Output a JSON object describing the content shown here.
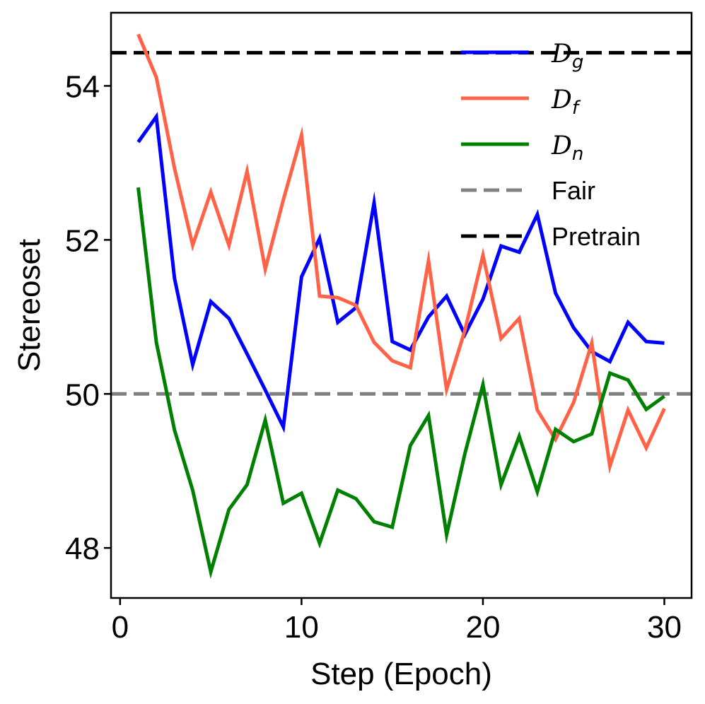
{
  "chart_data": {
    "type": "line",
    "title": "",
    "xlabel": "Step (Epoch)",
    "ylabel": "Stereoset",
    "xlim": [
      -0.5,
      31.5
    ],
    "ylim": [
      47.35,
      54.95
    ],
    "xticks": [
      0,
      10,
      20,
      30
    ],
    "yticks": [
      48,
      50,
      52,
      54
    ],
    "xtick_labels": [
      "0",
      "10",
      "20",
      "30"
    ],
    "ytick_labels": [
      "48",
      "50",
      "52",
      "54"
    ],
    "grid": false,
    "legend_position": "top-right",
    "x": [
      1,
      2,
      3,
      4,
      5,
      6,
      7,
      8,
      9,
      10,
      11,
      12,
      13,
      14,
      15,
      16,
      17,
      18,
      19,
      20,
      21,
      22,
      23,
      24,
      25,
      26,
      27,
      28,
      29,
      30
    ],
    "series": [
      {
        "name": "D_g",
        "symbol": "D",
        "subscript": "g",
        "color": "#0000ff",
        "style": "solid",
        "values": [
          53.27,
          53.6,
          51.5,
          50.38,
          51.2,
          50.98,
          50.52,
          50.05,
          49.57,
          51.52,
          52.02,
          50.93,
          51.12,
          52.48,
          50.68,
          50.57,
          51.0,
          51.27,
          50.77,
          51.23,
          51.92,
          51.84,
          52.33,
          51.31,
          50.86,
          50.55,
          50.42,
          50.93,
          50.68,
          50.66
        ]
      },
      {
        "name": "D_f",
        "symbol": "D",
        "subscript": "f",
        "color": "#ff6347",
        "style": "solid",
        "values": [
          54.67,
          54.11,
          52.93,
          51.93,
          52.62,
          51.93,
          52.89,
          51.62,
          52.52,
          53.36,
          51.27,
          51.25,
          51.15,
          50.67,
          50.43,
          50.34,
          51.73,
          50.06,
          50.82,
          51.8,
          50.72,
          50.98,
          49.79,
          49.41,
          49.89,
          50.66,
          49.06,
          49.79,
          49.3,
          49.81
        ]
      },
      {
        "name": "D_n",
        "symbol": "D",
        "subscript": "n",
        "color": "#008000",
        "style": "solid",
        "values": [
          52.68,
          50.67,
          49.53,
          48.75,
          47.69,
          48.5,
          48.82,
          49.66,
          48.58,
          48.71,
          48.06,
          48.75,
          48.64,
          48.34,
          48.27,
          49.33,
          49.72,
          48.17,
          49.22,
          50.12,
          48.82,
          49.45,
          48.73,
          49.54,
          49.38,
          49.48,
          50.27,
          50.18,
          49.8,
          49.97
        ]
      }
    ],
    "reference_lines": [
      {
        "name": "Fair",
        "value": 50.0,
        "color": "#808080",
        "style": "dashed"
      },
      {
        "name": "Pretrain",
        "value": 54.43,
        "color": "#000000",
        "style": "dashed"
      }
    ]
  }
}
